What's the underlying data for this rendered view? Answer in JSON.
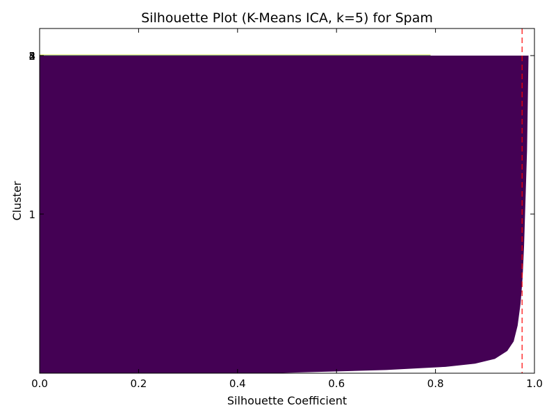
{
  "chart_data": {
    "type": "silhouette",
    "title": "Silhouette Plot (K-Means ICA, k=5) for Spam",
    "xlabel": "Silhouette Coefficient",
    "ylabel": "Cluster",
    "xlim": [
      0.0,
      1.0
    ],
    "x_ticks": [
      "0.0",
      "0.2",
      "0.4",
      "0.6",
      "0.8",
      "1.0"
    ],
    "y_tick_labels": [
      "1",
      "2",
      "3",
      "4",
      "5"
    ],
    "grid": false,
    "legend": "none",
    "average_silhouette_score": 0.975,
    "average_line_color": "#ff0000",
    "clusters": [
      {
        "label": "1",
        "color": "#440154",
        "profile": [
          [
            0.465,
            0.0
          ],
          [
            0.7,
            0.01
          ],
          [
            0.82,
            0.02
          ],
          [
            0.88,
            0.03
          ],
          [
            0.92,
            0.045
          ],
          [
            0.945,
            0.07
          ],
          [
            0.958,
            0.1
          ],
          [
            0.966,
            0.15
          ],
          [
            0.972,
            0.22
          ],
          [
            0.976,
            0.3
          ],
          [
            0.979,
            0.4
          ],
          [
            0.981,
            0.5
          ],
          [
            0.983,
            0.6
          ],
          [
            0.985,
            0.7
          ],
          [
            0.986,
            0.8
          ],
          [
            0.987,
            0.9
          ],
          [
            0.988,
            1.0
          ]
        ]
      },
      {
        "label": "2",
        "color": "#3b528b",
        "max": 0.79
      },
      {
        "label": "3",
        "color": "#21918c",
        "max": 0.79
      },
      {
        "label": "4",
        "color": "#5ec962",
        "max": 0.79
      },
      {
        "label": "5",
        "color": "#fde725",
        "max": 0.79
      }
    ]
  }
}
